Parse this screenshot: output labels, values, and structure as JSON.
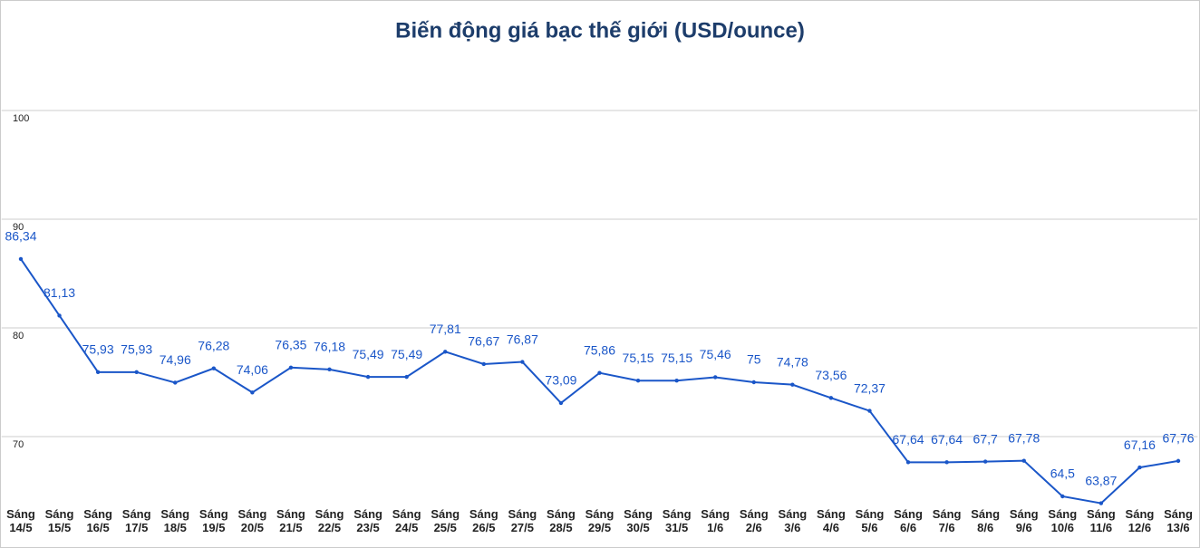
{
  "chart_data": {
    "type": "line",
    "title": "Biến động giá bạc thế giới (USD/ounce)",
    "categories": [
      "Sáng 14/5",
      "Sáng 15/5",
      "Sáng 16/5",
      "Sáng 17/5",
      "Sáng 18/5",
      "Sáng 19/5",
      "Sáng 20/5",
      "Sáng 21/5",
      "Sáng 22/5",
      "Sáng 23/5",
      "Sáng 24/5",
      "Sáng 25/5",
      "Sáng 26/5",
      "Sáng 27/5",
      "Sáng 28/5",
      "Sáng 29/5",
      "Sáng 30/5",
      "Sáng 31/5",
      "Sáng 1/6",
      "Sáng 2/6",
      "Sáng 3/6",
      "Sáng 4/6",
      "Sáng 5/6",
      "Sáng 6/6",
      "Sáng 7/6",
      "Sáng 8/6",
      "Sáng 9/6",
      "Sáng 10/6",
      "Sáng 11/6",
      "Sáng 12/6",
      "Sáng 13/6"
    ],
    "values": [
      86.34,
      81.13,
      75.93,
      75.93,
      74.96,
      76.28,
      74.06,
      76.35,
      76.18,
      75.49,
      75.49,
      77.81,
      76.67,
      76.87,
      73.09,
      75.86,
      75.15,
      75.15,
      75.46,
      75,
      74.78,
      73.56,
      72.37,
      67.64,
      67.64,
      67.7,
      67.78,
      64.5,
      63.87,
      67.16,
      67.76
    ],
    "value_labels": [
      "86,34",
      "81,13",
      "75,93",
      "75,93",
      "74,96",
      "76,28",
      "74,06",
      "76,35",
      "76,18",
      "75,49",
      "75,49",
      "77,81",
      "76,67",
      "76,87",
      "73,09",
      "75,86",
      "75,15",
      "75,15",
      "75,46",
      "75",
      "74,78",
      "73,56",
      "72,37",
      "67,64",
      "67,64",
      "67,7",
      "67,78",
      "64,5",
      "63,87",
      "67,16",
      "67,76"
    ],
    "color": "#1a56c8",
    "ylim": [
      60,
      110
    ],
    "yticks": [
      70,
      80,
      90,
      100
    ],
    "grid": true
  }
}
